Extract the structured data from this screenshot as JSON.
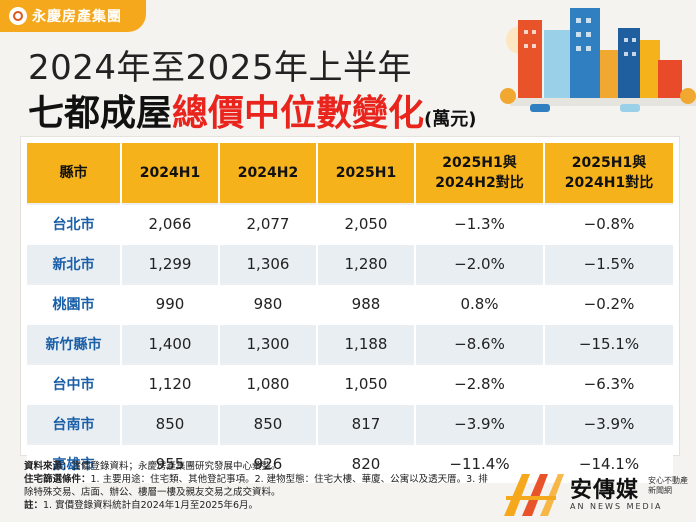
{
  "brand": {
    "name": "永慶房產集團"
  },
  "title": {
    "line1": "2024年至2025年上半年",
    "line2_black": "七都成屋",
    "line2_red": "總價中位數變化",
    "line2_unit": "(萬元)"
  },
  "table": {
    "headers": [
      "縣市",
      "2024H1",
      "2024H2",
      "2025H1",
      "2025H1與\n2024H2對比",
      "2025H1與\n2024H1對比"
    ],
    "rows": [
      {
        "city": "台北市",
        "h1_2024": "2,066",
        "h2_2024": "2,077",
        "h1_2025": "2,050",
        "vs_h2": "−1.3%",
        "vs_h1": "−0.8%"
      },
      {
        "city": "新北市",
        "h1_2024": "1,299",
        "h2_2024": "1,306",
        "h1_2025": "1,280",
        "vs_h2": "−2.0%",
        "vs_h1": "−1.5%"
      },
      {
        "city": "桃園市",
        "h1_2024": "990",
        "h2_2024": "980",
        "h1_2025": "988",
        "vs_h2": "0.8%",
        "vs_h1": "−0.2%"
      },
      {
        "city": "新竹縣市",
        "h1_2024": "1,400",
        "h2_2024": "1,300",
        "h1_2025": "1,188",
        "vs_h2": "−8.6%",
        "vs_h1": "−15.1%"
      },
      {
        "city": "台中市",
        "h1_2024": "1,120",
        "h2_2024": "1,080",
        "h1_2025": "1,050",
        "vs_h2": "−2.8%",
        "vs_h1": "−6.3%"
      },
      {
        "city": "台南市",
        "h1_2024": "850",
        "h2_2024": "850",
        "h1_2025": "817",
        "vs_h2": "−3.9%",
        "vs_h1": "−3.9%"
      },
      {
        "city": "高雄市",
        "h1_2024": "955",
        "h2_2024": "926",
        "h1_2025": "820",
        "vs_h2": "−11.4%",
        "vs_h1": "−14.1%"
      }
    ]
  },
  "notes": {
    "source_label": "資料來源：",
    "source_text": "實價登錄資料；永慶房產集團研究發展中心彙整。",
    "criteria_label": "住宅篩選條件：",
    "criteria_text": "1. 主要用途：住宅類、其他登記事項。2. 建物型態：住宅大樓、華廈、公寓以及透天厝。3. 排除特殊交易、店面、辦公、樓層一樓及親友交易之成交資料。",
    "footnote_label": "註：",
    "footnote_text": "1. 實價登錄資料統計自2024年1月至2025年6月。"
  },
  "media": {
    "name": "安傳媒",
    "sub": "AN NEWS MEDIA",
    "tag": "安心不動產新聞網"
  },
  "colors": {
    "header": "#f6b21a",
    "red": "#e8241d",
    "city_blue": "#1a5fa8",
    "row_alt": "#e9eef3"
  }
}
